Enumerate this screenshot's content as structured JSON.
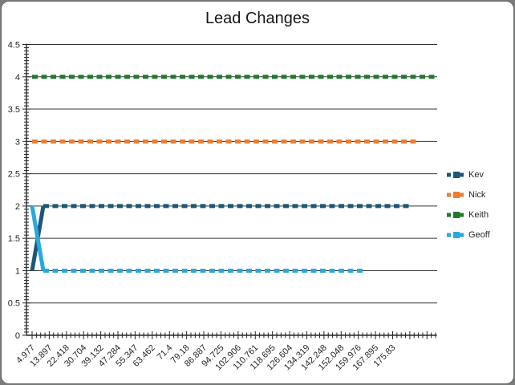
{
  "chart_data": {
    "type": "line",
    "title": "Lead Changes",
    "categories": [
      "4.977",
      "13.897",
      "22.418",
      "30.704",
      "39.132",
      "47.284",
      "55.347",
      "63.462",
      "71.4",
      "79.18",
      "86.887",
      "94.725",
      "102.906",
      "110.761",
      "118.695",
      "126.604",
      "134.319",
      "142.248",
      "152.048",
      "159.976",
      "167.895",
      "175.83"
    ],
    "series": [
      {
        "name": "Kev",
        "color": "#1C5876",
        "values": [
          1,
          2,
          2,
          2,
          2,
          2,
          2,
          2,
          2,
          2,
          2,
          2,
          2,
          2,
          2,
          2,
          2,
          2,
          2,
          2,
          2,
          2
        ],
        "end_category_index": 88
      },
      {
        "name": "Nick",
        "color": "#ED7D31",
        "values": [
          3,
          3,
          3,
          3,
          3,
          3,
          3,
          3,
          3,
          3,
          3,
          3,
          3,
          3,
          3,
          3,
          3,
          3,
          3,
          3,
          3,
          3
        ],
        "end_category_index": 90
      },
      {
        "name": "Keith",
        "color": "#1F7A2E",
        "values": [
          4,
          4,
          4,
          4,
          4,
          4,
          4,
          4,
          4,
          4,
          4,
          4,
          4,
          4,
          4,
          4,
          4,
          4,
          4,
          4,
          4,
          4
        ],
        "end_category_index": 94
      },
      {
        "name": "Geoff",
        "color": "#29A8DF",
        "values": [
          2,
          1,
          1,
          1,
          1,
          1,
          1,
          1,
          1,
          1,
          1,
          1,
          1,
          1,
          1,
          1,
          1,
          1,
          1,
          1,
          null,
          null
        ],
        "end_category_index": 77
      }
    ],
    "ylim": [
      0,
      4.5
    ],
    "y_major_unit": 0.5,
    "y_ticks": [
      "4.5",
      "4",
      "3.5",
      "3",
      "2.5",
      "2",
      "1.5",
      "1",
      "0.5",
      "0"
    ],
    "categories_per_label": 4,
    "total_categories": 95,
    "grid": true,
    "legend_position": "right",
    "line_style": "dashed",
    "marker": "square",
    "axis_color": "#262626",
    "gridline_color": "#333333"
  }
}
